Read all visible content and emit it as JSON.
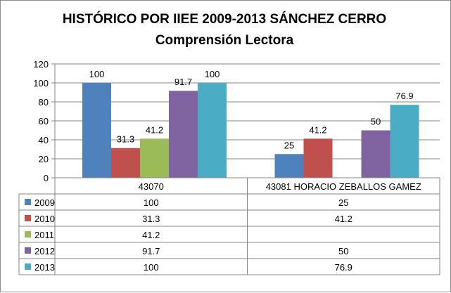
{
  "chart_data": {
    "type": "bar",
    "title": "HISTÓRICO POR IIEE 2009-2013 SÁNCHEZ CERRO",
    "subtitle": "Comprensión  Lectora",
    "categories": [
      "43070",
      "43081 HORACIO ZEBALLOS GAMEZ"
    ],
    "series": [
      {
        "name": "2009",
        "color": "#4f81bd",
        "values": [
          100,
          25
        ],
        "labels": [
          "100",
          "25"
        ]
      },
      {
        "name": "2010",
        "color": "#c0504d",
        "values": [
          31.3,
          41.2
        ],
        "labels": [
          "31.3",
          "41.2"
        ]
      },
      {
        "name": "2011",
        "color": "#9bbb59",
        "values": [
          41.2,
          null
        ],
        "labels": [
          "41.2",
          ""
        ]
      },
      {
        "name": "2012",
        "color": "#8064a2",
        "values": [
          91.7,
          50
        ],
        "labels": [
          "91.7",
          "50"
        ]
      },
      {
        "name": "2013",
        "color": "#4bacc6",
        "values": [
          100,
          76.9
        ],
        "labels": [
          "100",
          "76.9"
        ]
      }
    ],
    "ylim": [
      0,
      120
    ],
    "yticks": [
      0,
      20,
      40,
      60,
      80,
      100,
      120
    ],
    "grid": true,
    "legend": "data-table"
  }
}
